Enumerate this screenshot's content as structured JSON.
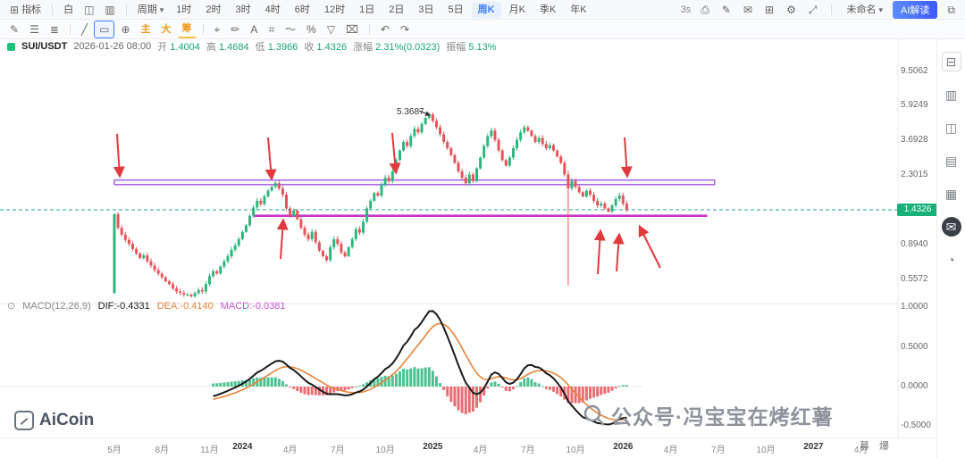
{
  "header": {
    "indicator_label": "指标",
    "theme_label": "白",
    "period_label": "周期",
    "timeframes": [
      "1时",
      "2时",
      "3时",
      "4时",
      "6时",
      "12时",
      "1日",
      "2日",
      "3日",
      "5日",
      "周K",
      "月K",
      "季K",
      "年K"
    ],
    "selected_timeframe": "周K",
    "refresh_label": "3s",
    "right_icons": [
      {
        "name": "camera-icon",
        "glyph": "⎙"
      },
      {
        "name": "edit-icon",
        "glyph": "✎"
      },
      {
        "name": "comment-icon",
        "glyph": "✉"
      },
      {
        "name": "add-window-icon",
        "glyph": "⊞"
      },
      {
        "name": "settings-icon",
        "glyph": "⚙"
      },
      {
        "name": "fullscreen-icon",
        "glyph": "⤢"
      }
    ],
    "unnamed_label": "未命名",
    "ai_button": "AI解读",
    "share_glyph": "⧉"
  },
  "drawing_toolbar": {
    "icons_left": [
      {
        "name": "pencil-tool",
        "glyph": "✎"
      },
      {
        "name": "list-tool",
        "glyph": "☰"
      },
      {
        "name": "segments-tool",
        "glyph": "≣"
      },
      {
        "name": "trendline-tool",
        "glyph": "╱"
      },
      {
        "name": "rect-select-tool",
        "glyph": "▭",
        "active": true
      },
      {
        "name": "circle-plus-tool",
        "glyph": "⊕"
      }
    ],
    "favorites": [
      "主",
      "大",
      "筹"
    ],
    "icons_right": [
      {
        "name": "cursor-tool",
        "glyph": "⌖"
      },
      {
        "name": "brush-tool",
        "glyph": "✏"
      },
      {
        "name": "text-tool",
        "glyph": "A"
      },
      {
        "name": "measure-tool",
        "glyph": "⌗"
      },
      {
        "name": "wave-tool",
        "glyph": "〜"
      },
      {
        "name": "percent-tool",
        "glyph": "%"
      },
      {
        "name": "filter-tool",
        "glyph": "▽"
      },
      {
        "name": "delete-tool",
        "glyph": "⌧"
      }
    ],
    "undo_glyph": "↶",
    "redo_glyph": "↷"
  },
  "info_bar": {
    "symbol": "SUI/USDT",
    "datetime": "2026-01-26 08:00",
    "open_label": "开",
    "open": "1.4004",
    "high_label": "高",
    "high": "1.4684",
    "low_label": "低",
    "low": "1.3966",
    "close_label": "收",
    "close": "1.4326",
    "change_label": "涨幅",
    "change": "2.31%(0.0323)",
    "amplitude_label": "振幅",
    "amplitude": "5.13%"
  },
  "macd_row": {
    "toggle_glyph": "⊙",
    "label": "MACD(12,26,9)",
    "dif": "DIF:-0.4331",
    "dea": "DEA:-0.4140",
    "macd": "MACD:-0.0381"
  },
  "chart_data": {
    "type": "candlestick+macd",
    "symbol": "SUI/USDT",
    "interval": "周K",
    "scale": "log",
    "y_axis_ticks": [
      9.5062,
      5.9249,
      3.6928,
      2.3015,
      1.4326,
      0.894,
      0.5572
    ],
    "macd_ticks": [
      1.0,
      0.5,
      0.0,
      -0.5
    ],
    "current_price": "1.4326",
    "peak_label": "5.3687",
    "first_open": 0.46,
    "closes": [
      1.35,
      1.12,
      1.02,
      0.95,
      0.9,
      0.84,
      0.79,
      0.74,
      0.77,
      0.71,
      0.67,
      0.63,
      0.6,
      0.57,
      0.54,
      0.52,
      0.49,
      0.47,
      0.46,
      0.45,
      0.45,
      0.44,
      0.46,
      0.48,
      0.47,
      0.52,
      0.58,
      0.62,
      0.6,
      0.66,
      0.71,
      0.76,
      0.83,
      0.88,
      0.96,
      1.06,
      1.16,
      1.32,
      1.48,
      1.62,
      1.55,
      1.72,
      1.86,
      1.96,
      2.06,
      1.92,
      1.76,
      1.46,
      1.32,
      1.42,
      1.26,
      1.12,
      1.02,
      0.96,
      1.06,
      0.92,
      0.82,
      0.76,
      0.72,
      0.86,
      0.96,
      0.9,
      0.8,
      0.76,
      0.86,
      0.96,
      1.1,
      1.05,
      1.22,
      1.46,
      1.62,
      1.8,
      1.74,
      2.02,
      2.22,
      2.12,
      2.42,
      2.82,
      3.22,
      3.62,
      3.42,
      3.92,
      4.32,
      4.12,
      4.62,
      5.02,
      5.26,
      4.82,
      4.42,
      4.02,
      3.62,
      3.32,
      3.02,
      2.72,
      2.42,
      2.22,
      2.06,
      2.32,
      2.12,
      2.52,
      2.92,
      3.42,
      3.92,
      4.22,
      3.72,
      3.22,
      2.82,
      2.62,
      2.92,
      3.32,
      3.72,
      4.12,
      4.42,
      4.22,
      3.92,
      3.62,
      3.82,
      3.52,
      3.32,
      3.46,
      3.22,
      2.96,
      2.72,
      2.32,
      1.92,
      2.12,
      1.96,
      1.82,
      1.72,
      1.86,
      1.76,
      1.62,
      1.52,
      1.56,
      1.46,
      1.4,
      1.52,
      1.66,
      1.74,
      1.56,
      1.4326
    ],
    "overrides": {
      "86": {
        "high": 5.3687
      },
      "124": {
        "low": 0.51,
        "high": 2.45
      }
    },
    "x_axis": [
      {
        "label": "5月",
        "week": 0
      },
      {
        "label": "8月",
        "week": 13
      },
      {
        "label": "11月",
        "week": 26
      },
      {
        "label": "2024",
        "week": 35,
        "year": true
      },
      {
        "label": "4月",
        "week": 48
      },
      {
        "label": "7月",
        "week": 61
      },
      {
        "label": "10月",
        "week": 74
      },
      {
        "label": "2025",
        "week": 87,
        "year": true
      },
      {
        "label": "4月",
        "week": 100
      },
      {
        "label": "7月",
        "week": 113
      },
      {
        "label": "10月",
        "week": 126
      },
      {
        "label": "2026",
        "week": 139,
        "year": true
      },
      {
        "label": "4月",
        "week": 152
      },
      {
        "label": "7月",
        "week": 165
      },
      {
        "label": "10月",
        "week": 178
      },
      {
        "label": "2027",
        "week": 191,
        "year": true
      },
      {
        "label": "4月",
        "week": 204
      }
    ],
    "colors": {
      "up": "#2db67e",
      "down": "#e8535a",
      "dif": "#1a1a1a",
      "dea": "#e8833a",
      "annotation": "#e03a3e",
      "purple_box": "#a15ae0",
      "magenta_line": "#c936c9",
      "price_line": "#26a69a",
      "badge": "#17b079",
      "accent": "#3d7eff"
    },
    "annotations": {
      "box": {
        "price_top": 2.15,
        "price_bottom": 2.02,
        "week_start": 0,
        "week_end": 164
      },
      "support_line": {
        "price": 1.32,
        "week_start": 38,
        "week_end": 162
      },
      "arrows_down": [
        [
          131,
          150,
          134,
          197
        ],
        [
          300,
          154,
          304,
          200
        ],
        [
          439,
          149,
          443,
          193
        ],
        [
          699,
          154,
          702,
          197
        ]
      ],
      "arrows_up": [
        [
          314,
          290,
          317,
          247
        ],
        [
          669,
          307,
          672,
          259
        ],
        [
          690,
          304,
          693,
          263
        ],
        [
          739,
          300,
          716,
          254
        ]
      ],
      "peak_pointer": [
        469,
        124,
        481,
        129
      ]
    }
  },
  "watermark": {
    "text": "公众号·冯宝宝在烤红薯"
  },
  "logo": {
    "text": "AiCoin"
  },
  "corner_label": "募 爆",
  "sidebar_icons": [
    {
      "name": "panel-toggle-icon",
      "glyph": "⊟",
      "first": true
    },
    {
      "name": "bar-chart-icon",
      "glyph": "▥"
    },
    {
      "name": "candlestick-icon",
      "glyph": "◫"
    },
    {
      "name": "orderbook-icon",
      "glyph": "▤"
    },
    {
      "name": "grid-icon",
      "glyph": "▦"
    },
    {
      "name": "chat-icon",
      "glyph": "✉",
      "active": true
    },
    {
      "name": "help-icon",
      "glyph": "◔"
    }
  ]
}
